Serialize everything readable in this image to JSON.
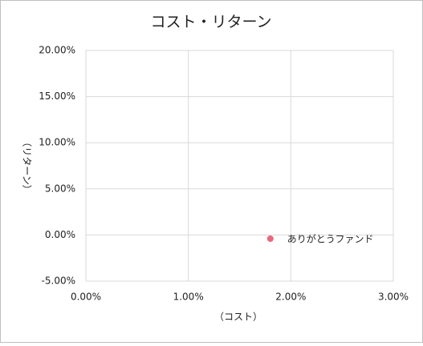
{
  "chart_data": {
    "type": "scatter",
    "title": "コスト・リターン",
    "x_label": "（コスト）",
    "y_label": "（リターン）",
    "series": [
      {
        "name": "ありがとうファンド",
        "color": "#e8677f",
        "x": [
          1.8
        ],
        "values": [
          -0.4
        ]
      }
    ],
    "xlim": [
      0,
      3
    ],
    "xticks": [
      {
        "value": 0,
        "label": "0.00%"
      },
      {
        "value": 1,
        "label": "1.00%"
      },
      {
        "value": 2,
        "label": "2.00%"
      },
      {
        "value": 3,
        "label": "3.00%"
      }
    ],
    "ylim": [
      -5,
      20
    ],
    "yticks": [
      {
        "value": -5,
        "label": "-5.00%"
      },
      {
        "value": 0,
        "label": "0.00%"
      },
      {
        "value": 5,
        "label": "5.00%"
      },
      {
        "value": 10,
        "label": "10.00%"
      },
      {
        "value": 15,
        "label": "15.00%"
      },
      {
        "value": 20,
        "label": "20.00%"
      }
    ],
    "grid": true
  }
}
